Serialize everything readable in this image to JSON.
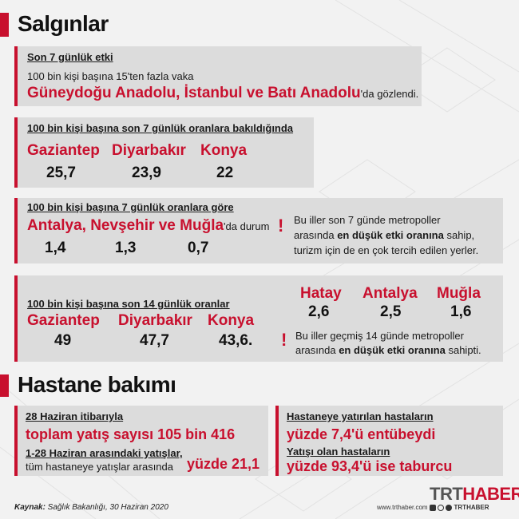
{
  "salginlar": {
    "title": "Salgınlar",
    "box1": {
      "heading": "Son 7 günlük etki",
      "line1": "100 bin kişi başına 15'ten fazla vaka",
      "highlight": "Güneydoğu Anadolu, İstanbul ve Batı Anadolu",
      "suffix": "'da gözlendi."
    },
    "box2": {
      "heading": "100 bin kişi başına son 7 günlük oranlara bakıldığında",
      "cities": [
        {
          "name": "Gaziantep",
          "value": "25,7"
        },
        {
          "name": "Diyarbakır",
          "value": "23,9"
        },
        {
          "name": "Konya",
          "value": "22"
        }
      ]
    },
    "box3": {
      "heading": "100 bin kişi başına 7 günlük oranlara göre",
      "highlight": "Antalya, Nevşehir ve Muğla",
      "suffix": "'da durum",
      "values": [
        "1,4",
        "1,3",
        "0,7"
      ],
      "note_line1": "Bu iller son 7 günde metropoller",
      "note_line2_pre": "arasında ",
      "note_line2_bold": "en düşük etki oranına",
      "note_line2_post": " sahip,",
      "note_line3": "turizm için de en çok tercih edilen yerler."
    },
    "box4": {
      "heading": "100 bin kişi başına son 14 günlük oranlar",
      "cities": [
        {
          "name": "Gaziantep",
          "value": "49"
        },
        {
          "name": "Diyarbakır",
          "value": "47,7"
        },
        {
          "name": "Konya",
          "value": "43,6."
        }
      ],
      "right_cities": [
        {
          "name": "Hatay",
          "value": "2,6"
        },
        {
          "name": "Antalya",
          "value": "2,5"
        },
        {
          "name": "Muğla",
          "value": "1,6"
        }
      ],
      "note_line1": "Bu iller geçmiş 14 günde metropoller",
      "note_line2_pre": "arasında ",
      "note_line2_bold": "en düşük etki oranına",
      "note_line2_post": " sahipti."
    }
  },
  "hastane": {
    "title": "Hastane bakımı",
    "left": {
      "line1": "28 Haziran itibarıyla",
      "big1": "toplam yatış sayısı 105 bin 416",
      "line2": "1-28 Haziran arasındaki yatışlar,",
      "line3": "tüm hastaneye yatışlar arasında",
      "big2": "yüzde 21,1"
    },
    "right": {
      "line1": "Hastaneye yatırılan hastaların",
      "big1": "yüzde 7,4'ü entübeydi",
      "line2": "Yatışı olan hastaların",
      "big2": "yüzde 93,4'ü ise taburcu"
    }
  },
  "footer": {
    "source_label": "Kaynak:",
    "source_text": " Sağlık Bakanlığı, 30 Haziran 2020",
    "site": "www.trthaber.com",
    "handle": "TRTHABER",
    "logo_a": "TRT",
    "logo_b": "HABER"
  },
  "colors": {
    "accent": "#c8102e",
    "panel": "#dcdcdc",
    "background": "#f2f2f2"
  }
}
